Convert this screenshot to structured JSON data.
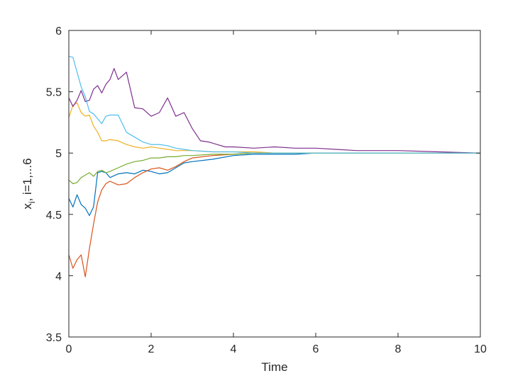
{
  "chart_data": {
    "type": "line",
    "title": "",
    "xlabel": "Time",
    "ylabel_main": "x",
    "ylabel_sub": "i",
    "ylabel_rest": ", i=1,...6",
    "xlim": [
      0,
      10
    ],
    "ylim": [
      3.5,
      6
    ],
    "xticks": [
      0,
      2,
      4,
      6,
      8,
      10
    ],
    "xtick_labels": [
      "0",
      "2",
      "4",
      "6",
      "8",
      "10"
    ],
    "yticks": [
      3.5,
      4,
      4.5,
      5,
      5.5,
      6
    ],
    "ytick_labels": [
      "3.5",
      "4",
      "4.5",
      "5",
      "5.5",
      "6"
    ],
    "grid": false,
    "legend": "none",
    "series": [
      {
        "color": "#0072BD",
        "x": [
          0,
          0.1,
          0.2,
          0.3,
          0.4,
          0.5,
          0.6,
          0.7,
          0.8,
          0.9,
          1.0,
          1.2,
          1.4,
          1.6,
          1.8,
          2.0,
          2.2,
          2.4,
          2.6,
          2.8,
          3.0,
          3.5,
          4.0,
          4.5,
          5.0,
          5.5,
          6.0,
          7.0,
          8.0,
          9.0,
          10.0
        ],
        "y": [
          4.63,
          4.56,
          4.66,
          4.58,
          4.55,
          4.49,
          4.56,
          4.84,
          4.85,
          4.84,
          4.8,
          4.83,
          4.84,
          4.83,
          4.86,
          4.85,
          4.83,
          4.84,
          4.88,
          4.92,
          4.93,
          4.95,
          4.98,
          4.99,
          4.99,
          4.99,
          5.0,
          5.0,
          5.0,
          5.0,
          5.0
        ]
      },
      {
        "color": "#D95319",
        "x": [
          0,
          0.1,
          0.2,
          0.3,
          0.4,
          0.5,
          0.6,
          0.7,
          0.8,
          0.9,
          1.0,
          1.2,
          1.4,
          1.6,
          1.8,
          2.0,
          2.2,
          2.4,
          2.6,
          2.8,
          3.0,
          3.5,
          4.0,
          4.5,
          5.0,
          5.5,
          6.0,
          7.0,
          8.0,
          9.0,
          10.0
        ],
        "y": [
          4.17,
          4.06,
          4.13,
          4.17,
          3.99,
          4.22,
          4.42,
          4.6,
          4.7,
          4.75,
          4.77,
          4.74,
          4.75,
          4.8,
          4.84,
          4.87,
          4.88,
          4.86,
          4.89,
          4.93,
          4.96,
          4.98,
          4.99,
          5.0,
          5.0,
          5.0,
          5.0,
          5.0,
          5.0,
          5.0,
          5.0
        ]
      },
      {
        "color": "#EDB120",
        "x": [
          0,
          0.1,
          0.2,
          0.3,
          0.4,
          0.5,
          0.6,
          0.7,
          0.8,
          0.9,
          1.0,
          1.2,
          1.4,
          1.6,
          1.8,
          2.0,
          2.2,
          2.4,
          2.6,
          2.8,
          3.0,
          3.5,
          4.0,
          4.5,
          5.0,
          5.5,
          6.0,
          7.0,
          8.0,
          9.0,
          10.0
        ],
        "y": [
          5.29,
          5.39,
          5.41,
          5.33,
          5.3,
          5.31,
          5.22,
          5.17,
          5.1,
          5.1,
          5.11,
          5.1,
          5.07,
          5.05,
          5.04,
          5.05,
          5.04,
          5.03,
          5.02,
          5.02,
          5.02,
          5.01,
          5.01,
          5.01,
          5.0,
          5.0,
          5.0,
          5.0,
          5.0,
          5.0,
          5.0
        ]
      },
      {
        "color": "#7E2F8E",
        "x": [
          0,
          0.1,
          0.2,
          0.3,
          0.4,
          0.5,
          0.6,
          0.7,
          0.8,
          0.9,
          1.0,
          1.1,
          1.2,
          1.4,
          1.6,
          1.8,
          2.0,
          2.2,
          2.4,
          2.6,
          2.8,
          3.0,
          3.2,
          3.4,
          3.6,
          3.8,
          4.0,
          4.5,
          5.0,
          5.5,
          6.0,
          6.5,
          7.0,
          8.0,
          9.0,
          10.0
        ],
        "y": [
          5.45,
          5.38,
          5.43,
          5.51,
          5.42,
          5.43,
          5.52,
          5.55,
          5.49,
          5.56,
          5.6,
          5.69,
          5.6,
          5.66,
          5.37,
          5.36,
          5.3,
          5.33,
          5.45,
          5.3,
          5.33,
          5.2,
          5.1,
          5.09,
          5.07,
          5.05,
          5.05,
          5.04,
          5.05,
          5.04,
          5.04,
          5.03,
          5.02,
          5.02,
          5.01,
          5.0
        ]
      },
      {
        "color": "#77AC30",
        "x": [
          0,
          0.1,
          0.2,
          0.3,
          0.4,
          0.5,
          0.6,
          0.7,
          0.8,
          0.9,
          1.0,
          1.2,
          1.4,
          1.6,
          1.8,
          2.0,
          2.2,
          2.4,
          2.6,
          2.8,
          3.0,
          3.5,
          4.0,
          4.5,
          5.0,
          5.5,
          6.0,
          7.0,
          8.0,
          9.0,
          10.0
        ],
        "y": [
          4.78,
          4.75,
          4.76,
          4.8,
          4.82,
          4.84,
          4.81,
          4.85,
          4.86,
          4.84,
          4.85,
          4.88,
          4.91,
          4.93,
          4.94,
          4.96,
          4.96,
          4.97,
          4.97,
          4.98,
          4.98,
          4.99,
          4.99,
          5.0,
          5.0,
          5.0,
          5.0,
          5.0,
          5.0,
          5.0,
          5.0
        ]
      },
      {
        "color": "#4DBEEE",
        "x": [
          0,
          0.1,
          0.2,
          0.3,
          0.4,
          0.5,
          0.6,
          0.7,
          0.8,
          0.9,
          1.0,
          1.2,
          1.4,
          1.6,
          1.8,
          2.0,
          2.2,
          2.4,
          2.6,
          2.8,
          3.0,
          3.5,
          4.0,
          4.5,
          5.0,
          5.5,
          6.0,
          7.0,
          8.0,
          9.0,
          10.0
        ],
        "y": [
          5.79,
          5.78,
          5.66,
          5.54,
          5.46,
          5.34,
          5.32,
          5.28,
          5.24,
          5.3,
          5.31,
          5.31,
          5.17,
          5.13,
          5.09,
          5.07,
          5.07,
          5.06,
          5.04,
          5.03,
          5.02,
          5.01,
          5.01,
          5.0,
          5.0,
          5.0,
          5.0,
          5.0,
          5.0,
          5.0,
          5.0
        ]
      }
    ]
  }
}
